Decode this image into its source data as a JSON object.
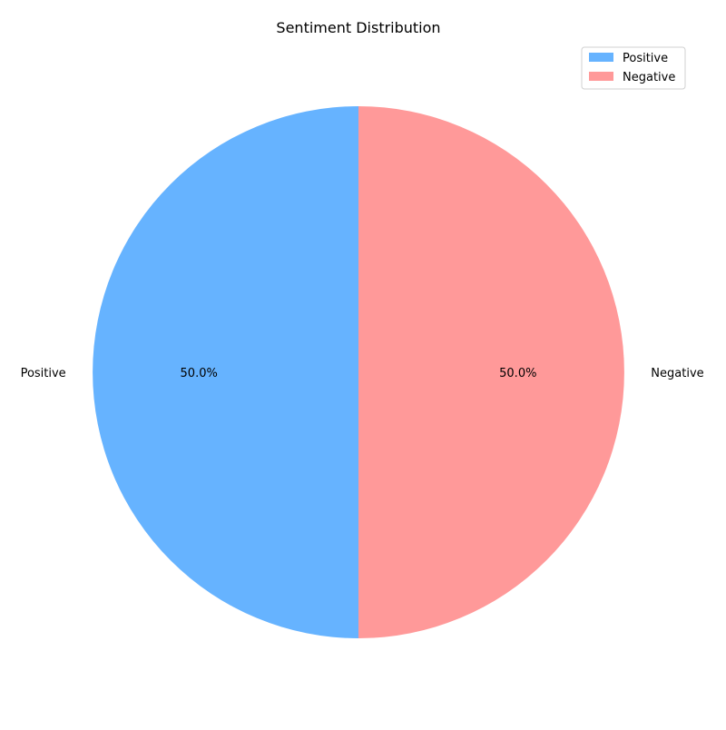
{
  "chart_data": {
    "type": "pie",
    "title": "Sentiment Distribution",
    "categories": [
      "Positive",
      "Negative"
    ],
    "values": [
      50,
      50
    ],
    "percent_labels": [
      "50.0%",
      "50.0%"
    ],
    "colors": [
      "#66b3ff",
      "#ff9999"
    ],
    "start_angle_deg": 90,
    "direction": "counterclockwise",
    "legend": {
      "placement": "top-right",
      "entries": [
        "Positive",
        "Negative"
      ]
    }
  }
}
